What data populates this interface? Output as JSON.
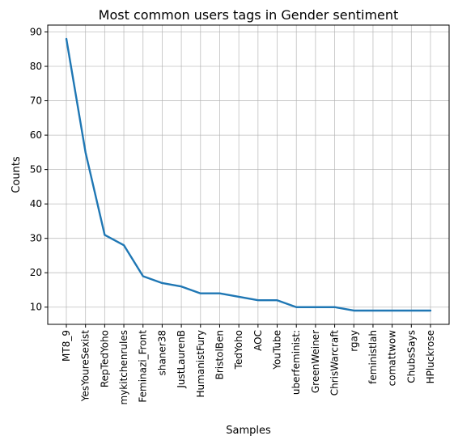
{
  "chart_data": {
    "type": "line",
    "title": "Most common users tags in Gender sentiment",
    "xlabel": "Samples",
    "ylabel": "Counts",
    "categories": [
      "MT8_9",
      "YesYoureSexist",
      "RepTedYoho",
      "mykitchenrules",
      "Feminazi_Front",
      "shaner38",
      "JustLaurenB",
      "HumanistFury",
      "BristolBen",
      "TedYoho",
      "AOC",
      "YouTube",
      "uberfeminist:",
      "GreenWeiner",
      "ChrisWarcraft",
      "rgay",
      "feministlah",
      "comattwow",
      "ChubsSays",
      "HPluckrose"
    ],
    "values": [
      88,
      55,
      31,
      28,
      19,
      17,
      16,
      14,
      14,
      13,
      12,
      12,
      10,
      10,
      10,
      9,
      9,
      9,
      9,
      9
    ],
    "ylim": [
      5,
      92
    ],
    "yticks": [
      10,
      20,
      30,
      40,
      50,
      60,
      70,
      80,
      90
    ],
    "grid": true,
    "line_color": "#1f77b4"
  }
}
